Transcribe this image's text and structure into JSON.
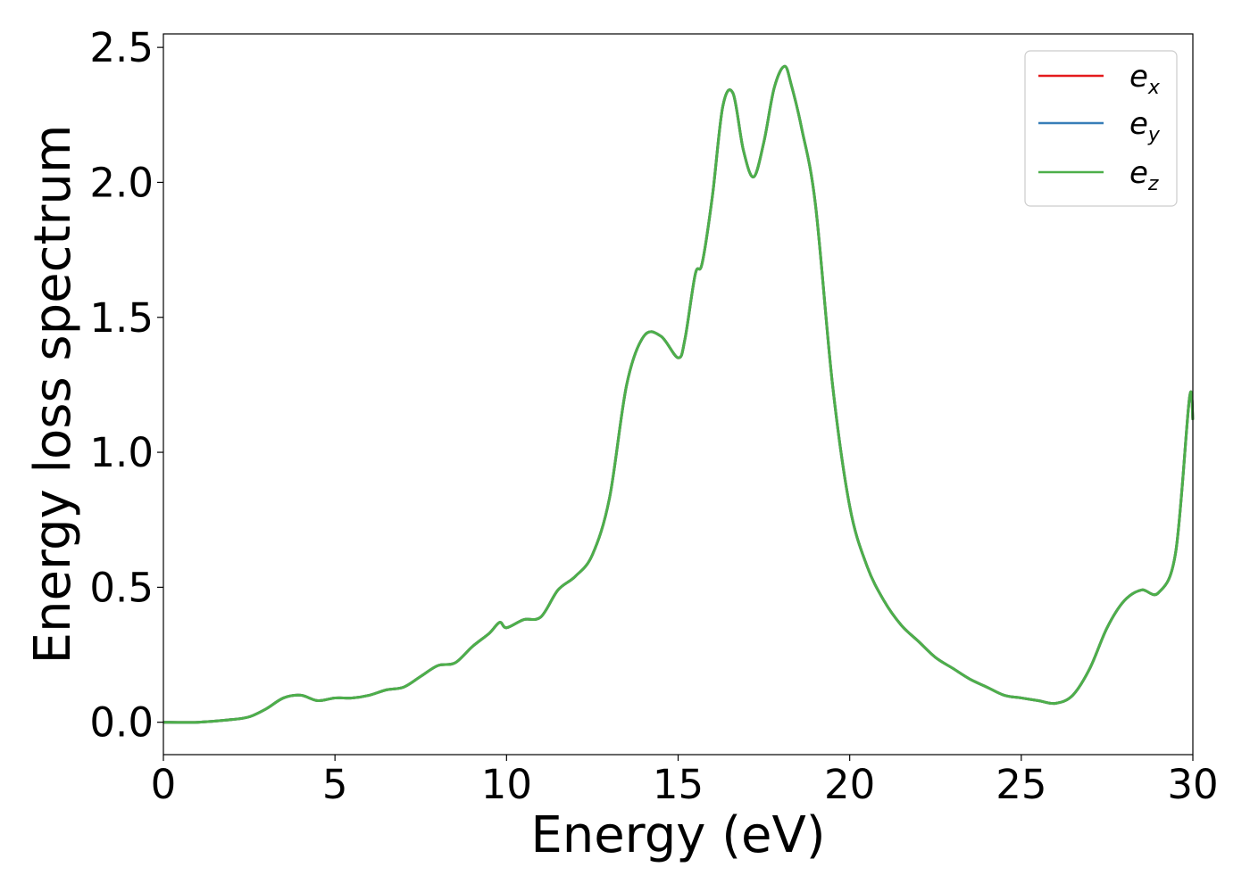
{
  "chart_data": {
    "type": "line",
    "title": "",
    "xlabel": "Energy (eV)",
    "ylabel": "Energy loss spectrum",
    "xlim": [
      0,
      30
    ],
    "ylim": [
      -0.12,
      2.55
    ],
    "xticks": [
      0,
      5,
      10,
      15,
      20,
      25,
      30
    ],
    "xtick_labels": [
      "0",
      "5",
      "10",
      "15",
      "20",
      "25",
      "30"
    ],
    "yticks": [
      0.0,
      0.5,
      1.0,
      1.5,
      2.0,
      2.5
    ],
    "ytick_labels": [
      "0.0",
      "0.5",
      "1.0",
      "1.5",
      "2.0",
      "2.5"
    ],
    "grid": false,
    "legend_position": "top-right",
    "legend": [
      {
        "base": "e",
        "sub": "x",
        "color": "#e41a1c"
      },
      {
        "base": "e",
        "sub": "y",
        "color": "#377eb8"
      },
      {
        "base": "e",
        "sub": "z",
        "color": "#4daf4a"
      }
    ],
    "x": [
      0,
      1,
      2,
      2.5,
      3,
      3.5,
      4,
      4.5,
      5,
      5.5,
      6,
      6.5,
      7,
      7.5,
      8,
      8.5,
      9,
      9.5,
      9.8,
      10,
      10.5,
      11,
      11.5,
      12,
      12.5,
      13,
      13.5,
      14,
      14.5,
      15,
      15.2,
      15.5,
      15.7,
      16,
      16.3,
      16.6,
      16.9,
      17.2,
      17.5,
      17.8,
      18.1,
      18.3,
      18.6,
      19,
      19.5,
      20,
      20.5,
      21,
      21.5,
      22,
      22.5,
      23,
      23.5,
      24,
      24.5,
      25,
      25.5,
      26,
      26.5,
      27,
      27.5,
      28,
      28.5,
      29,
      29.5,
      29.9,
      30
    ],
    "series": [
      {
        "name": "e_x",
        "color": "#e41a1c",
        "y": [
          0.0,
          0.0,
          0.01,
          0.02,
          0.05,
          0.09,
          0.1,
          0.08,
          0.09,
          0.09,
          0.1,
          0.12,
          0.13,
          0.17,
          0.21,
          0.22,
          0.28,
          0.33,
          0.37,
          0.35,
          0.38,
          0.39,
          0.49,
          0.54,
          0.62,
          0.83,
          1.25,
          1.43,
          1.43,
          1.35,
          1.42,
          1.66,
          1.7,
          1.95,
          2.28,
          2.33,
          2.12,
          2.02,
          2.15,
          2.35,
          2.43,
          2.36,
          2.2,
          1.92,
          1.25,
          0.8,
          0.58,
          0.45,
          0.36,
          0.3,
          0.24,
          0.2,
          0.16,
          0.13,
          0.1,
          0.09,
          0.08,
          0.07,
          0.1,
          0.2,
          0.35,
          0.45,
          0.49,
          0.48,
          0.63,
          1.2,
          1.12
        ]
      },
      {
        "name": "e_y",
        "color": "#377eb8",
        "y": [
          0.0,
          0.0,
          0.01,
          0.02,
          0.05,
          0.09,
          0.1,
          0.08,
          0.09,
          0.09,
          0.1,
          0.12,
          0.13,
          0.17,
          0.21,
          0.22,
          0.28,
          0.33,
          0.37,
          0.35,
          0.38,
          0.39,
          0.49,
          0.54,
          0.62,
          0.83,
          1.25,
          1.43,
          1.43,
          1.35,
          1.42,
          1.66,
          1.7,
          1.95,
          2.28,
          2.33,
          2.12,
          2.02,
          2.15,
          2.35,
          2.43,
          2.36,
          2.2,
          1.92,
          1.25,
          0.8,
          0.58,
          0.45,
          0.36,
          0.3,
          0.24,
          0.2,
          0.16,
          0.13,
          0.1,
          0.09,
          0.08,
          0.07,
          0.1,
          0.2,
          0.35,
          0.45,
          0.49,
          0.48,
          0.63,
          1.2,
          1.12
        ]
      },
      {
        "name": "e_z",
        "color": "#4daf4a",
        "y": [
          0.0,
          0.0,
          0.01,
          0.02,
          0.05,
          0.09,
          0.1,
          0.08,
          0.09,
          0.09,
          0.1,
          0.12,
          0.13,
          0.17,
          0.21,
          0.22,
          0.28,
          0.33,
          0.37,
          0.35,
          0.38,
          0.39,
          0.49,
          0.54,
          0.62,
          0.83,
          1.25,
          1.43,
          1.43,
          1.35,
          1.42,
          1.66,
          1.7,
          1.95,
          2.28,
          2.33,
          2.12,
          2.02,
          2.15,
          2.35,
          2.43,
          2.36,
          2.2,
          1.92,
          1.25,
          0.8,
          0.58,
          0.45,
          0.36,
          0.3,
          0.24,
          0.2,
          0.16,
          0.13,
          0.1,
          0.09,
          0.08,
          0.07,
          0.1,
          0.2,
          0.35,
          0.45,
          0.49,
          0.48,
          0.63,
          1.2,
          1.12
        ]
      }
    ]
  }
}
